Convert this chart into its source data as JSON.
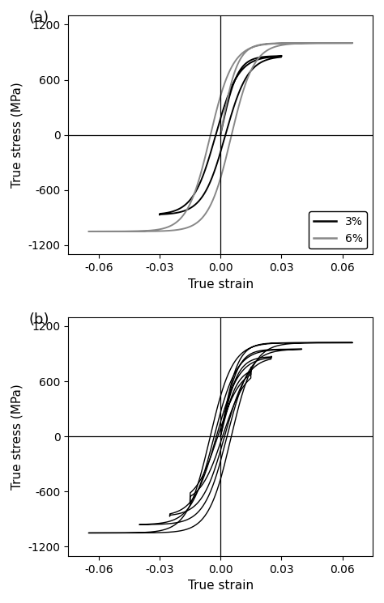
{
  "title_a": "(a)",
  "title_b": "(b)",
  "xlabel": "True strain",
  "ylabel": "True stress (MPa)",
  "xlim": [
    -0.075,
    0.075
  ],
  "ylim": [
    -1300,
    1300
  ],
  "xticks": [
    -0.06,
    -0.03,
    0.0,
    0.03,
    0.06
  ],
  "yticks": [
    -1200,
    -600,
    0,
    600,
    1200
  ],
  "xtick_labels": [
    "-0.06",
    "-0.03",
    "0.00",
    "0.03",
    "0.06"
  ],
  "ytick_labels": [
    "-1200",
    "-600",
    "0",
    "600",
    "1200"
  ],
  "color_3pct": "#000000",
  "color_6pct": "#888888",
  "color_b": "#000000",
  "legend_labels": [
    "3%",
    "6%"
  ],
  "figsize": [
    4.74,
    7.45
  ],
  "dpi": 100,
  "loop_a_3": {
    "strain_amp": 0.03,
    "stress_max": 860,
    "stress_min": -870,
    "lw": 1.4
  },
  "loop_a_6": {
    "strain_amp": 0.065,
    "stress_max": 1000,
    "stress_min": -1050,
    "lw": 1.4
  },
  "loop_b": [
    {
      "strain_amp": 0.065,
      "stress_max": 1020,
      "stress_min": -1050,
      "lw": 1.0
    },
    {
      "strain_amp": 0.04,
      "stress_max": 950,
      "stress_min": -960,
      "lw": 1.0
    },
    {
      "strain_amp": 0.025,
      "stress_max": 870,
      "stress_min": -870,
      "lw": 1.0
    },
    {
      "strain_amp": 0.015,
      "stress_max": 750,
      "stress_min": -730,
      "lw": 1.0
    }
  ]
}
